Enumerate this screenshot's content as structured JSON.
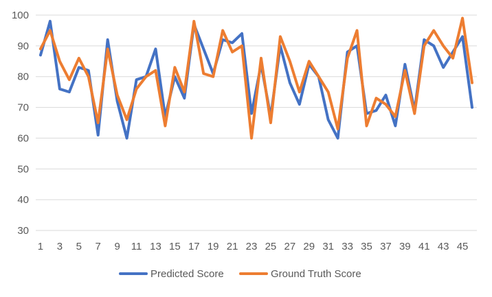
{
  "chart_data": {
    "type": "line",
    "title": "",
    "xlabel": "",
    "ylabel": "",
    "ylim": [
      30,
      100
    ],
    "y_ticks": [
      30,
      40,
      50,
      60,
      70,
      80,
      90,
      100
    ],
    "x": [
      1,
      2,
      3,
      4,
      5,
      6,
      7,
      8,
      9,
      10,
      11,
      12,
      13,
      14,
      15,
      16,
      17,
      18,
      19,
      20,
      21,
      22,
      23,
      24,
      25,
      26,
      27,
      28,
      29,
      30,
      31,
      32,
      33,
      34,
      35,
      36,
      37,
      38,
      39,
      40,
      41,
      42,
      43,
      44,
      45,
      46
    ],
    "x_tick_labels": [
      1,
      3,
      5,
      7,
      9,
      11,
      13,
      15,
      17,
      19,
      21,
      23,
      25,
      27,
      29,
      31,
      33,
      35,
      37,
      39,
      41,
      43,
      45
    ],
    "grid": "horizontal",
    "legend_position": "bottom",
    "series": [
      {
        "name": "Predicted Score",
        "color": "#4472C4",
        "values": [
          87,
          98,
          76,
          75,
          83,
          82,
          61,
          92,
          72,
          60,
          79,
          80,
          89,
          67,
          80,
          73,
          97,
          89,
          81,
          92,
          91,
          94,
          68,
          84,
          67,
          90,
          78,
          71,
          84,
          80,
          66,
          60,
          88,
          90,
          68,
          69,
          74,
          64,
          84,
          69,
          92,
          90,
          83,
          88,
          93,
          70
        ]
      },
      {
        "name": "Ground Truth Score",
        "color": "#ED7D31",
        "values": [
          89,
          95,
          85,
          79,
          86,
          80,
          65,
          89,
          74,
          66,
          76,
          80,
          82,
          64,
          83,
          75,
          98,
          81,
          80,
          95,
          88,
          90,
          60,
          86,
          65,
          93,
          85,
          75,
          85,
          80,
          75,
          63,
          86,
          95,
          64,
          73,
          71,
          67,
          82,
          68,
          90,
          95,
          90,
          86,
          99,
          78
        ]
      }
    ]
  }
}
